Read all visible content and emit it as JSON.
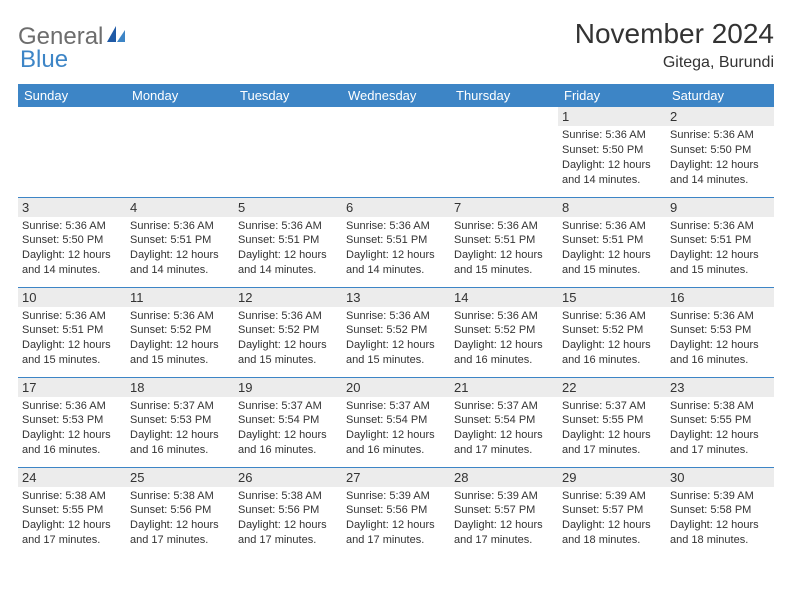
{
  "brand": {
    "text1": "General",
    "text2": "Blue"
  },
  "title": "November 2024",
  "location": "Gitega, Burundi",
  "header_bg": "#3d85c6",
  "weekdays": [
    "Sunday",
    "Monday",
    "Tuesday",
    "Wednesday",
    "Thursday",
    "Friday",
    "Saturday"
  ],
  "weeks": [
    [
      {
        "n": "",
        "sr": "",
        "ss": "",
        "dl": ""
      },
      {
        "n": "",
        "sr": "",
        "ss": "",
        "dl": ""
      },
      {
        "n": "",
        "sr": "",
        "ss": "",
        "dl": ""
      },
      {
        "n": "",
        "sr": "",
        "ss": "",
        "dl": ""
      },
      {
        "n": "",
        "sr": "",
        "ss": "",
        "dl": ""
      },
      {
        "n": "1",
        "sr": "Sunrise: 5:36 AM",
        "ss": "Sunset: 5:50 PM",
        "dl": "Daylight: 12 hours and 14 minutes."
      },
      {
        "n": "2",
        "sr": "Sunrise: 5:36 AM",
        "ss": "Sunset: 5:50 PM",
        "dl": "Daylight: 12 hours and 14 minutes."
      }
    ],
    [
      {
        "n": "3",
        "sr": "Sunrise: 5:36 AM",
        "ss": "Sunset: 5:50 PM",
        "dl": "Daylight: 12 hours and 14 minutes."
      },
      {
        "n": "4",
        "sr": "Sunrise: 5:36 AM",
        "ss": "Sunset: 5:51 PM",
        "dl": "Daylight: 12 hours and 14 minutes."
      },
      {
        "n": "5",
        "sr": "Sunrise: 5:36 AM",
        "ss": "Sunset: 5:51 PM",
        "dl": "Daylight: 12 hours and 14 minutes."
      },
      {
        "n": "6",
        "sr": "Sunrise: 5:36 AM",
        "ss": "Sunset: 5:51 PM",
        "dl": "Daylight: 12 hours and 14 minutes."
      },
      {
        "n": "7",
        "sr": "Sunrise: 5:36 AM",
        "ss": "Sunset: 5:51 PM",
        "dl": "Daylight: 12 hours and 15 minutes."
      },
      {
        "n": "8",
        "sr": "Sunrise: 5:36 AM",
        "ss": "Sunset: 5:51 PM",
        "dl": "Daylight: 12 hours and 15 minutes."
      },
      {
        "n": "9",
        "sr": "Sunrise: 5:36 AM",
        "ss": "Sunset: 5:51 PM",
        "dl": "Daylight: 12 hours and 15 minutes."
      }
    ],
    [
      {
        "n": "10",
        "sr": "Sunrise: 5:36 AM",
        "ss": "Sunset: 5:51 PM",
        "dl": "Daylight: 12 hours and 15 minutes."
      },
      {
        "n": "11",
        "sr": "Sunrise: 5:36 AM",
        "ss": "Sunset: 5:52 PM",
        "dl": "Daylight: 12 hours and 15 minutes."
      },
      {
        "n": "12",
        "sr": "Sunrise: 5:36 AM",
        "ss": "Sunset: 5:52 PM",
        "dl": "Daylight: 12 hours and 15 minutes."
      },
      {
        "n": "13",
        "sr": "Sunrise: 5:36 AM",
        "ss": "Sunset: 5:52 PM",
        "dl": "Daylight: 12 hours and 15 minutes."
      },
      {
        "n": "14",
        "sr": "Sunrise: 5:36 AM",
        "ss": "Sunset: 5:52 PM",
        "dl": "Daylight: 12 hours and 16 minutes."
      },
      {
        "n": "15",
        "sr": "Sunrise: 5:36 AM",
        "ss": "Sunset: 5:52 PM",
        "dl": "Daylight: 12 hours and 16 minutes."
      },
      {
        "n": "16",
        "sr": "Sunrise: 5:36 AM",
        "ss": "Sunset: 5:53 PM",
        "dl": "Daylight: 12 hours and 16 minutes."
      }
    ],
    [
      {
        "n": "17",
        "sr": "Sunrise: 5:36 AM",
        "ss": "Sunset: 5:53 PM",
        "dl": "Daylight: 12 hours and 16 minutes."
      },
      {
        "n": "18",
        "sr": "Sunrise: 5:37 AM",
        "ss": "Sunset: 5:53 PM",
        "dl": "Daylight: 12 hours and 16 minutes."
      },
      {
        "n": "19",
        "sr": "Sunrise: 5:37 AM",
        "ss": "Sunset: 5:54 PM",
        "dl": "Daylight: 12 hours and 16 minutes."
      },
      {
        "n": "20",
        "sr": "Sunrise: 5:37 AM",
        "ss": "Sunset: 5:54 PM",
        "dl": "Daylight: 12 hours and 16 minutes."
      },
      {
        "n": "21",
        "sr": "Sunrise: 5:37 AM",
        "ss": "Sunset: 5:54 PM",
        "dl": "Daylight: 12 hours and 17 minutes."
      },
      {
        "n": "22",
        "sr": "Sunrise: 5:37 AM",
        "ss": "Sunset: 5:55 PM",
        "dl": "Daylight: 12 hours and 17 minutes."
      },
      {
        "n": "23",
        "sr": "Sunrise: 5:38 AM",
        "ss": "Sunset: 5:55 PM",
        "dl": "Daylight: 12 hours and 17 minutes."
      }
    ],
    [
      {
        "n": "24",
        "sr": "Sunrise: 5:38 AM",
        "ss": "Sunset: 5:55 PM",
        "dl": "Daylight: 12 hours and 17 minutes."
      },
      {
        "n": "25",
        "sr": "Sunrise: 5:38 AM",
        "ss": "Sunset: 5:56 PM",
        "dl": "Daylight: 12 hours and 17 minutes."
      },
      {
        "n": "26",
        "sr": "Sunrise: 5:38 AM",
        "ss": "Sunset: 5:56 PM",
        "dl": "Daylight: 12 hours and 17 minutes."
      },
      {
        "n": "27",
        "sr": "Sunrise: 5:39 AM",
        "ss": "Sunset: 5:56 PM",
        "dl": "Daylight: 12 hours and 17 minutes."
      },
      {
        "n": "28",
        "sr": "Sunrise: 5:39 AM",
        "ss": "Sunset: 5:57 PM",
        "dl": "Daylight: 12 hours and 17 minutes."
      },
      {
        "n": "29",
        "sr": "Sunrise: 5:39 AM",
        "ss": "Sunset: 5:57 PM",
        "dl": "Daylight: 12 hours and 18 minutes."
      },
      {
        "n": "30",
        "sr": "Sunrise: 5:39 AM",
        "ss": "Sunset: 5:58 PM",
        "dl": "Daylight: 12 hours and 18 minutes."
      }
    ]
  ]
}
